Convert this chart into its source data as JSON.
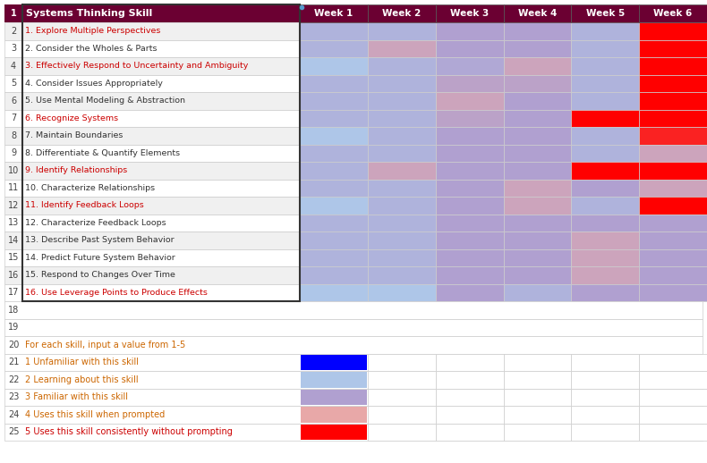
{
  "header_bg": "#6b0032",
  "header_text_color": "#ffffff",
  "col_header": [
    "Systems Thinking Skill",
    "Week 1",
    "Week 2",
    "Week 3",
    "Week 4",
    "Week 5",
    "Week 6"
  ],
  "skills": [
    "1. Explore Multiple Perspectives",
    "2. Consider the Wholes & Parts",
    "3. Effectively Respond to Uncertainty and Ambiguity",
    "4. Consider Issues Appropriately",
    "5. Use Mental Modeling & Abstraction",
    "6. Recognize Systems",
    "7. Maintain Boundaries",
    "8. Differentiate & Quantify Elements",
    "9. Identify Relationships",
    "10. Characterize Relationships",
    "11. Identify Feedback Loops",
    "12. Characterize Feedback Loops",
    "13. Describe Past System Behavior",
    "14. Predict Future System Behavior",
    "15. Respond to Changes Over Time",
    "16. Use Leverage Points to Produce Effects"
  ],
  "heatmap_values": [
    [
      2.5,
      2.5,
      3.0,
      3.0,
      2.5,
      5.0
    ],
    [
      2.5,
      3.5,
      3.0,
      3.0,
      2.5,
      5.0
    ],
    [
      2.0,
      2.5,
      2.8,
      3.5,
      2.5,
      5.0
    ],
    [
      2.5,
      2.5,
      3.2,
      3.2,
      2.5,
      5.0
    ],
    [
      2.5,
      2.5,
      3.5,
      3.0,
      2.5,
      5.0
    ],
    [
      2.5,
      2.5,
      3.2,
      3.0,
      5.0,
      5.0
    ],
    [
      2.0,
      2.5,
      3.0,
      3.0,
      2.5,
      4.8
    ],
    [
      2.5,
      2.5,
      3.0,
      3.0,
      2.5,
      3.5
    ],
    [
      2.5,
      3.5,
      3.0,
      3.0,
      5.0,
      5.0
    ],
    [
      2.5,
      2.5,
      3.0,
      3.5,
      3.0,
      3.5
    ],
    [
      2.0,
      2.5,
      3.0,
      3.5,
      2.5,
      5.0
    ],
    [
      2.5,
      2.5,
      3.0,
      3.0,
      3.0,
      3.0
    ],
    [
      2.5,
      2.5,
      3.0,
      3.0,
      3.5,
      3.0
    ],
    [
      2.5,
      2.5,
      3.0,
      3.0,
      3.5,
      3.0
    ],
    [
      2.5,
      2.5,
      3.0,
      3.0,
      3.5,
      3.0
    ],
    [
      2.0,
      2.0,
      3.0,
      2.5,
      3.0,
      3.0
    ]
  ],
  "highlighted_rows": [
    0,
    2,
    5,
    8,
    10,
    15
  ],
  "highlight_color": "#cc0000",
  "normal_text_color": "#333333",
  "legend_text_color": "#cc6600",
  "legend_last_color": "#cc0000",
  "grid_line_color": "#cccccc",
  "row_bg_even": "#f0f0f0",
  "row_bg_odd": "#ffffff",
  "note_row": "For each skill, input a value from 1-5",
  "legend_items": [
    {
      "value": "1",
      "label": "Unfamiliar with this skill",
      "color": "#0000ff"
    },
    {
      "value": "2",
      "label": "Learning about this skill",
      "color": "#aec6e8"
    },
    {
      "value": "3",
      "label": "Familiar with this skill",
      "color": "#b0a0d0"
    },
    {
      "value": "4",
      "label": "Uses this skill when prompted",
      "color": "#e8a8a8"
    },
    {
      "value": "5",
      "label": "Uses this skill consistently without prompting",
      "color": "#ff0000"
    }
  ],
  "color_stops": [
    [
      1.0,
      [
        0,
        0,
        255
      ]
    ],
    [
      2.0,
      [
        174,
        198,
        232
      ]
    ],
    [
      3.0,
      [
        176,
        160,
        208
      ]
    ],
    [
      4.0,
      [
        232,
        168,
        168
      ]
    ],
    [
      5.0,
      [
        255,
        0,
        0
      ]
    ]
  ]
}
